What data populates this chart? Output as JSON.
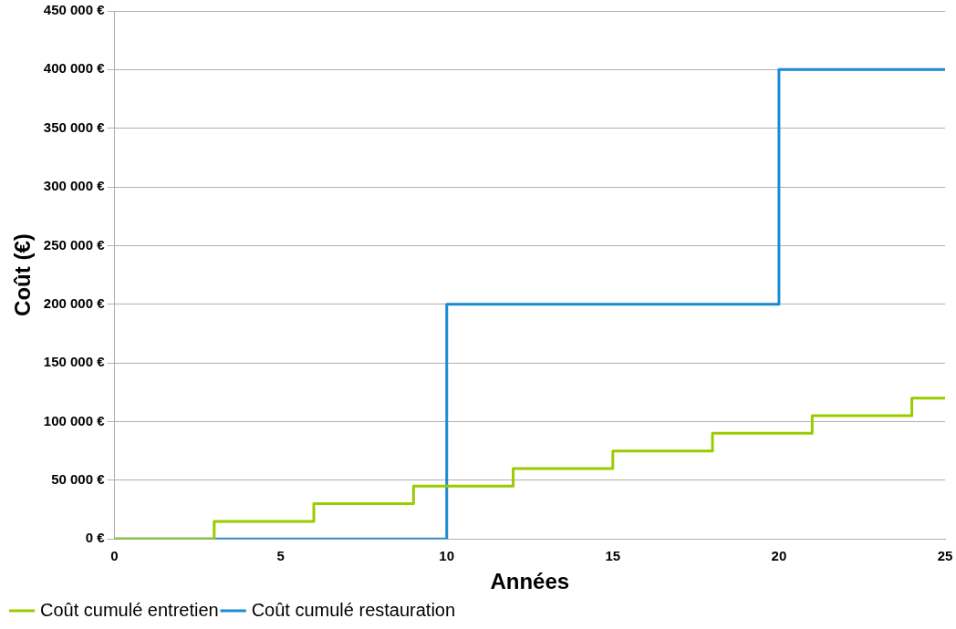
{
  "chart_data": {
    "type": "step",
    "xlabel": "Années",
    "ylabel": "Coût (€)",
    "xlim": [
      0,
      25
    ],
    "xticks": [
      0,
      5,
      10,
      15,
      20,
      25
    ],
    "ylim": [
      0,
      450000
    ],
    "yticks": [
      {
        "value": 0,
        "label": "0 €"
      },
      {
        "value": 50000,
        "label": "50 000 €"
      },
      {
        "value": 100000,
        "label": "100 000 €"
      },
      {
        "value": 150000,
        "label": "150 000 €"
      },
      {
        "value": 200000,
        "label": "200 000 €"
      },
      {
        "value": 250000,
        "label": "250 000 €"
      },
      {
        "value": 300000,
        "label": "300 000 €"
      },
      {
        "value": 350000,
        "label": "350 000 €"
      },
      {
        "value": 400000,
        "label": "400 000 €"
      },
      {
        "value": 450000,
        "label": "450 000 €"
      }
    ],
    "grid": "y",
    "legend": "bottom left",
    "marker": "none",
    "line_style": "solid",
    "series": [
      {
        "name": "Coût cumulé entretien",
        "color": "#99cc00",
        "x": [
          0,
          3,
          6,
          9,
          12,
          15,
          18,
          21,
          24,
          25
        ],
        "values": [
          0,
          15000,
          30000,
          45000,
          60000,
          75000,
          90000,
          105000,
          120000,
          120000
        ]
      },
      {
        "name": "Coût cumulé restauration",
        "color": "#1a8ad4",
        "x": [
          0,
          10,
          20,
          25
        ],
        "values": [
          0,
          200000,
          400000,
          400000
        ]
      }
    ]
  }
}
